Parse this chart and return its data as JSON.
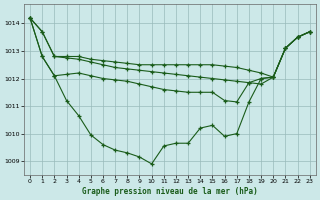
{
  "title": "Graphe pression niveau de la mer (hPa)",
  "ylim": [
    1008.5,
    1014.7
  ],
  "yticks": [
    1009,
    1010,
    1011,
    1012,
    1013,
    1014
  ],
  "bg_color": "#cce8e8",
  "grid_color": "#99bbbb",
  "line_color": "#1a5c1a",
  "hours": [
    0,
    1,
    2,
    3,
    4,
    5,
    6,
    7,
    8,
    9,
    10,
    11,
    12,
    13,
    14,
    15,
    16,
    17,
    18,
    19,
    20,
    21,
    22,
    23
  ],
  "series": [
    [
      1014.2,
      1013.7,
      1012.8,
      1012.8,
      1012.8,
      1012.7,
      1012.65,
      1012.6,
      1012.55,
      1012.5,
      1012.5,
      1012.5,
      1012.5,
      1012.5,
      1012.5,
      1012.5,
      1012.45,
      1012.4,
      1012.3,
      1012.2,
      1012.05,
      1013.1,
      1013.5,
      1013.7
    ],
    [
      1014.2,
      1013.7,
      1012.8,
      1012.75,
      1012.7,
      1012.6,
      1012.5,
      1012.4,
      1012.35,
      1012.3,
      1012.25,
      1012.2,
      1012.15,
      1012.1,
      1012.05,
      1012.0,
      1011.95,
      1011.9,
      1011.85,
      1011.8,
      1012.05,
      1013.1,
      1013.5,
      1013.7
    ],
    [
      1014.2,
      1012.8,
      1012.1,
      1012.15,
      1012.2,
      1012.1,
      1012.0,
      1011.95,
      1011.9,
      1011.8,
      1011.7,
      1011.6,
      1011.55,
      1011.5,
      1011.5,
      1011.5,
      1011.2,
      1011.15,
      1011.85,
      1012.0,
      1012.05,
      1013.1,
      1013.5,
      1013.7
    ],
    [
      1014.2,
      1012.8,
      1012.1,
      1011.2,
      1010.65,
      1009.95,
      1009.6,
      1009.4,
      1009.3,
      1009.15,
      1008.9,
      1009.55,
      1009.65,
      1009.65,
      1010.2,
      1010.3,
      1009.9,
      1010.0,
      1011.15,
      1012.0,
      1012.05,
      1013.1,
      1013.5,
      1013.7
    ]
  ]
}
